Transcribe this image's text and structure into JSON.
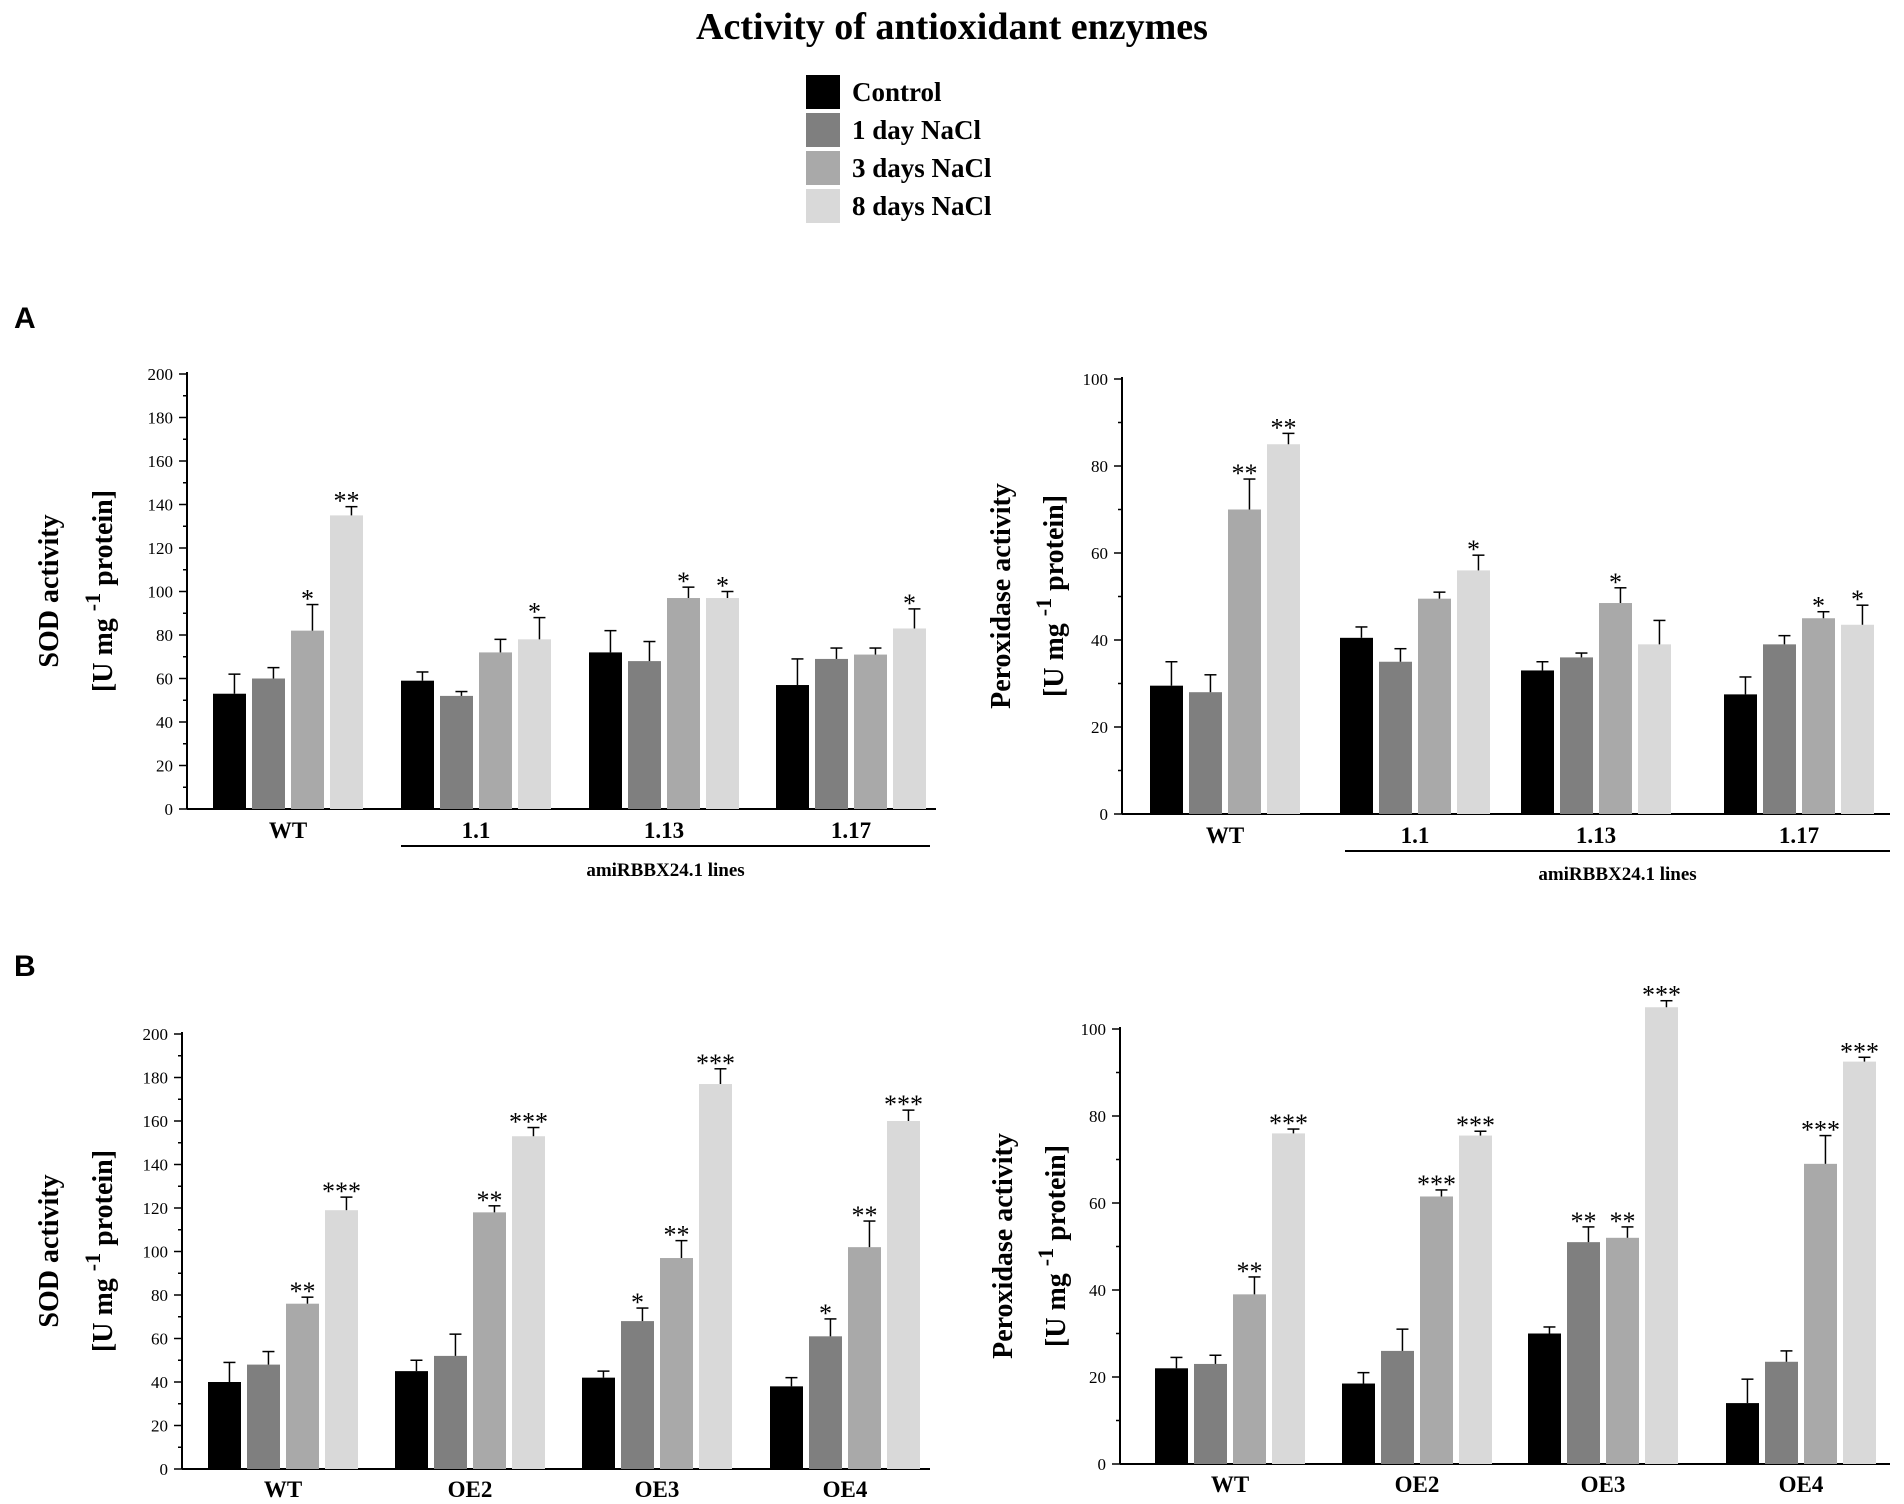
{
  "figure_title": "Activity of antioxidant enzymes",
  "legend": [
    {
      "label": "Control",
      "color": "#000000"
    },
    {
      "label": "1 day NaCl",
      "color": "#7f7f7f"
    },
    {
      "label": "3 days NaCl",
      "color": "#a9a9a9"
    },
    {
      "label": "8 days NaCl",
      "color": "#d9d9d9"
    }
  ],
  "panels": {
    "a": "A",
    "b": "B"
  },
  "chart_data": [
    {
      "id": "A1",
      "type": "bar",
      "ylabel_line1": "SOD activity",
      "ylabel_line2": "[U mg -1 protein]",
      "ylim": [
        0,
        200
      ],
      "yticks": [
        0,
        20,
        40,
        60,
        80,
        100,
        120,
        140,
        160,
        180,
        200
      ],
      "categories": [
        "WT",
        "1.1",
        "1.13",
        "1.17"
      ],
      "group_label": "amiRBBX24.1 lines",
      "series": [
        {
          "name": "Control",
          "values": [
            53,
            59,
            72,
            57
          ],
          "errors": [
            9,
            4,
            10,
            12
          ],
          "sig": [
            "",
            "",
            "",
            ""
          ]
        },
        {
          "name": "1 day NaCl",
          "values": [
            60,
            52,
            68,
            69
          ],
          "errors": [
            5,
            2,
            9,
            5
          ],
          "sig": [
            "",
            "",
            "",
            ""
          ]
        },
        {
          "name": "3 days NaCl",
          "values": [
            82,
            72,
            97,
            71
          ],
          "errors": [
            12,
            6,
            5,
            3
          ],
          "sig": [
            "*",
            "",
            "*",
            ""
          ]
        },
        {
          "name": "8 days NaCl",
          "values": [
            135,
            78,
            97,
            83
          ],
          "errors": [
            4,
            10,
            3,
            9
          ],
          "sig": [
            "**",
            "*",
            "*",
            "*"
          ]
        }
      ]
    },
    {
      "id": "A2",
      "type": "bar",
      "ylabel_line1": "Peroxidase activity",
      "ylabel_line2": "[U mg -1 protein]",
      "ylim": [
        0,
        100
      ],
      "yticks": [
        0,
        20,
        40,
        60,
        80,
        100
      ],
      "categories": [
        "WT",
        "1.1",
        "1.13",
        "1.17"
      ],
      "group_label": "amiRBBX24.1 lines",
      "series": [
        {
          "name": "Control",
          "values": [
            29.5,
            40.5,
            33,
            27.5
          ],
          "errors": [
            5.5,
            2.5,
            2,
            4
          ],
          "sig": [
            "",
            "",
            "",
            ""
          ]
        },
        {
          "name": "1 day NaCl",
          "values": [
            28,
            35,
            36,
            39
          ],
          "errors": [
            4,
            3,
            1,
            2
          ],
          "sig": [
            "",
            "",
            "",
            ""
          ]
        },
        {
          "name": "3 days NaCl",
          "values": [
            70,
            49.5,
            48.5,
            45
          ],
          "errors": [
            7,
            1.5,
            3.5,
            1.5
          ],
          "sig": [
            "**",
            "",
            "*",
            "*"
          ]
        },
        {
          "name": "8 days NaCl",
          "values": [
            85,
            56,
            39,
            43.5
          ],
          "errors": [
            2.5,
            3.5,
            5.5,
            4.5
          ],
          "sig": [
            "**",
            "*",
            "",
            "*"
          ]
        }
      ]
    },
    {
      "id": "B1",
      "type": "bar",
      "ylabel_line1": "SOD activity",
      "ylabel_line2": "[U mg -1 protein]",
      "ylim": [
        0,
        200
      ],
      "yticks": [
        0,
        20,
        40,
        60,
        80,
        100,
        120,
        140,
        160,
        180,
        200
      ],
      "categories": [
        "WT",
        "OE2",
        "OE3",
        "OE4"
      ],
      "group_label": "",
      "series": [
        {
          "name": "Control",
          "values": [
            40,
            45,
            42,
            38
          ],
          "errors": [
            9,
            5,
            3,
            4
          ],
          "sig": [
            "",
            "",
            "",
            ""
          ]
        },
        {
          "name": "1 day NaCl",
          "values": [
            48,
            52,
            68,
            61
          ],
          "errors": [
            6,
            10,
            6,
            8
          ],
          "sig": [
            "",
            "",
            "*",
            "*"
          ]
        },
        {
          "name": "3 days NaCl",
          "values": [
            76,
            118,
            97,
            102
          ],
          "errors": [
            3,
            3,
            8,
            12
          ],
          "sig": [
            "**",
            "**",
            "**",
            "**"
          ]
        },
        {
          "name": "8 days NaCl",
          "values": [
            119,
            153,
            177,
            160
          ],
          "errors": [
            6,
            4,
            7,
            5
          ],
          "sig": [
            "***",
            "***",
            "***",
            "***"
          ]
        }
      ]
    },
    {
      "id": "B2",
      "type": "bar",
      "ylabel_line1": "Peroxidase activity",
      "ylabel_line2": "[U mg -1 protein]",
      "ylim": [
        0,
        100
      ],
      "yticks": [
        0,
        20,
        40,
        60,
        80,
        100
      ],
      "categories": [
        "WT",
        "OE2",
        "OE3",
        "OE4"
      ],
      "group_label": "",
      "series": [
        {
          "name": "Control",
          "values": [
            22,
            18.5,
            30,
            14
          ],
          "errors": [
            2.5,
            2.5,
            1.5,
            5.5
          ],
          "sig": [
            "",
            "",
            "",
            ""
          ]
        },
        {
          "name": "1 day NaCl",
          "values": [
            23,
            26,
            51,
            23.5
          ],
          "errors": [
            2,
            5,
            3.5,
            2.5
          ],
          "sig": [
            "",
            "",
            "**",
            ""
          ]
        },
        {
          "name": "3 days NaCl",
          "values": [
            39,
            61.5,
            52,
            69
          ],
          "errors": [
            4,
            1.5,
            2.5,
            6.5
          ],
          "sig": [
            "**",
            "***",
            "**",
            "***"
          ]
        },
        {
          "name": "8 days NaCl",
          "values": [
            76,
            75.5,
            105,
            92.5
          ],
          "errors": [
            1,
            1,
            1.5,
            1
          ],
          "sig": [
            "***",
            "***",
            "***",
            "***"
          ]
        }
      ]
    }
  ]
}
